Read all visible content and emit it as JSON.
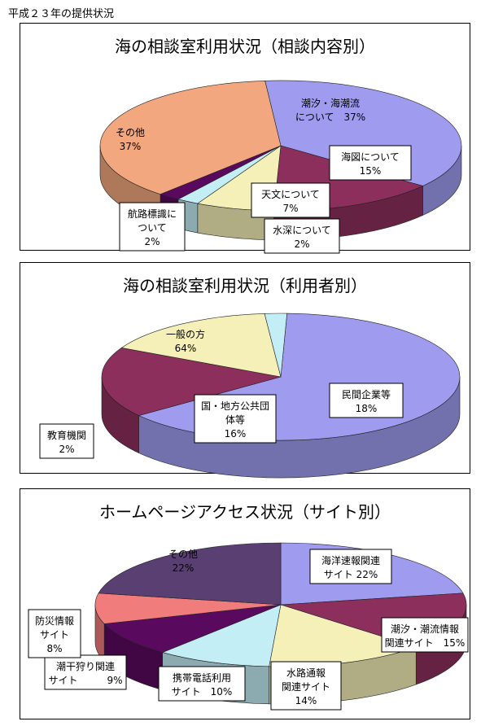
{
  "page_title": "平成２３年の提供状況",
  "chart_data": [
    {
      "type": "pie",
      "title": "海の相談室利用状況（相談内容別）",
      "slices": [
        {
          "label": "潮汐・海潮流について",
          "value": 37,
          "value_label": "37%",
          "color": "#9f9cf0"
        },
        {
          "label": "海図について",
          "value": 15,
          "value_label": "15%",
          "color": "#8c2f5c"
        },
        {
          "label": "天文について",
          "value": 7,
          "value_label": "7%",
          "color": "#f5f0b8"
        },
        {
          "label": "水深について",
          "value": 2,
          "value_label": "2%",
          "color": "#c3eef5"
        },
        {
          "label": "航路標識について",
          "value": 2,
          "value_label": "2%",
          "color": "#5a0a5e"
        },
        {
          "label": "その他",
          "value": 37,
          "value_label": "37%",
          "color": "#f2a77e"
        }
      ]
    },
    {
      "type": "pie",
      "title": "海の相談室利用状況（利用者別）",
      "slices": [
        {
          "label": "一般の方",
          "value": 64,
          "value_label": "64%",
          "color": "#9f9cf0"
        },
        {
          "label": "民間企業等",
          "value": 18,
          "value_label": "18%",
          "color": "#8c2f5c"
        },
        {
          "label": "国・地方公共団体等",
          "value": 16,
          "value_label": "16%",
          "color": "#f5f0b8"
        },
        {
          "label": "教育機関",
          "value": 2,
          "value_label": "2%",
          "color": "#c3eef5"
        }
      ]
    },
    {
      "type": "pie",
      "title": "ホームページアクセス状況（サイト別）",
      "slices": [
        {
          "label": "海洋速報関連サイト",
          "value": 22,
          "value_label": "22%",
          "color": "#9f9cf0"
        },
        {
          "label": "潮汐・潮流情報関連サイト",
          "value": 15,
          "value_label": "15%",
          "color": "#8c2f5c"
        },
        {
          "label": "水路通報関連サイト",
          "value": 14,
          "value_label": "14%",
          "color": "#f5f0b8"
        },
        {
          "label": "携帯電話利用サイト",
          "value": 10,
          "value_label": "10%",
          "color": "#c3eef5"
        },
        {
          "label": "潮干狩り関連サイト",
          "value": 9,
          "value_label": "9%",
          "color": "#5a0a5e"
        },
        {
          "label": "防災情報サイト",
          "value": 8,
          "value_label": "8%",
          "color": "#f07c7c"
        },
        {
          "label": "その他",
          "value": 22,
          "value_label": "22%",
          "color": "#5a3f73"
        }
      ]
    }
  ]
}
